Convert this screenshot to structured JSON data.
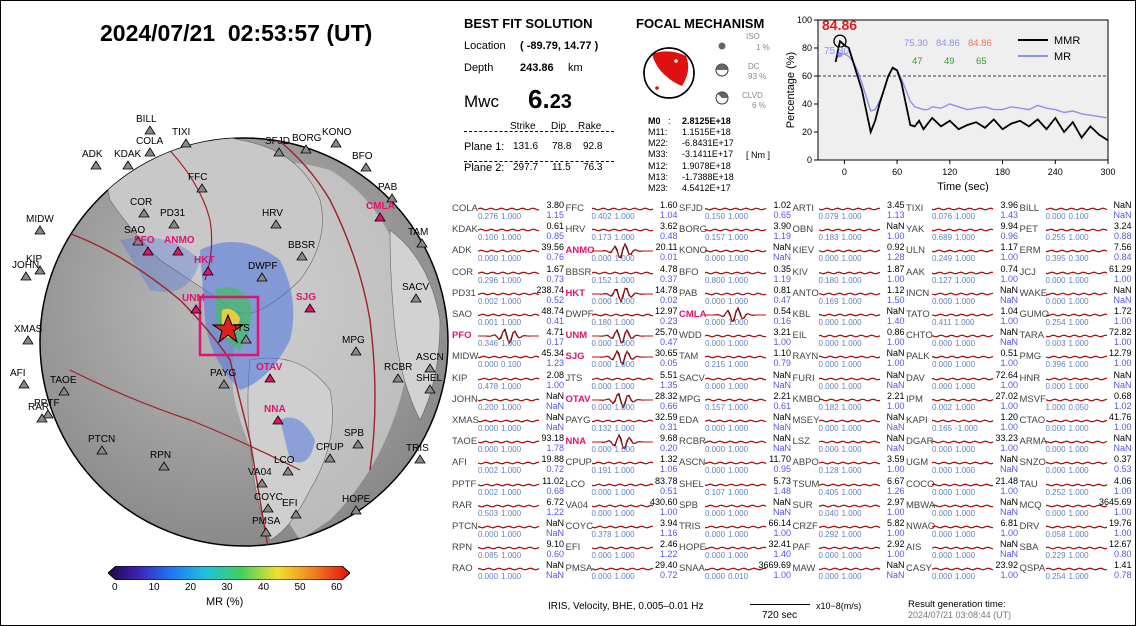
{
  "title": "2024/07/21  02:53:57 (UT)",
  "map": {
    "stations": [
      {
        "n": "TIXI"
      },
      {
        "n": "BILL"
      },
      {
        "n": "COLA"
      },
      {
        "n": "ADK"
      },
      {
        "n": "KDAK"
      },
      {
        "n": "BORG"
      },
      {
        "n": "KONO"
      },
      {
        "n": "SFJD"
      },
      {
        "n": "BFO"
      },
      {
        "n": "FFC"
      },
      {
        "n": "PAB"
      },
      {
        "n": "COR"
      },
      {
        "n": "CMLA",
        "hl": true
      },
      {
        "n": "PD31"
      },
      {
        "n": "HRV"
      },
      {
        "n": "MIDW"
      },
      {
        "n": "SAO"
      },
      {
        "n": "PFO",
        "hl": true
      },
      {
        "n": "ANMO",
        "hl": true
      },
      {
        "n": "BBSR"
      },
      {
        "n": "TAM"
      },
      {
        "n": "KIP"
      },
      {
        "n": "JOHN"
      },
      {
        "n": "HKT",
        "hl": true
      },
      {
        "n": "DWPF"
      },
      {
        "n": "SACV"
      },
      {
        "n": "UNM",
        "hl": true
      },
      {
        "n": "SJG",
        "hl": true
      },
      {
        "n": "XMAS"
      },
      {
        "n": "JTS"
      },
      {
        "n": "MPG"
      },
      {
        "n": "ASCN"
      },
      {
        "n": "AFI"
      },
      {
        "n": "PAYG"
      },
      {
        "n": "OTAV",
        "hl": true
      },
      {
        "n": "RCBR"
      },
      {
        "n": "SHEL"
      },
      {
        "n": "TAOE"
      },
      {
        "n": "PPTF"
      },
      {
        "n": "RAR"
      },
      {
        "n": "NNA",
        "hl": true
      },
      {
        "n": "PTCN"
      },
      {
        "n": "SPB"
      },
      {
        "n": "TRIS"
      },
      {
        "n": "RPN"
      },
      {
        "n": "LCO"
      },
      {
        "n": "CPUP"
      },
      {
        "n": "VA04"
      },
      {
        "n": "COYC"
      },
      {
        "n": "EFI"
      },
      {
        "n": "HOPE"
      },
      {
        "n": "PMSA"
      }
    ],
    "colorbar": {
      "ticks": [
        "0",
        "10",
        "20",
        "30",
        "40",
        "50",
        "60"
      ],
      "label": "MR (%)"
    }
  },
  "solution": {
    "heading": "BEST FIT SOLUTION",
    "location_label": "Location",
    "location_value": "( -89.79, 14.77 )",
    "depth_label": "Depth",
    "depth_value": "243.86",
    "depth_unit": "km",
    "mw_label": "Mwc",
    "mw_int": "6.",
    "mw_dec": "23",
    "col_strike": "Strike",
    "col_dip": "Dip",
    "col_rake": "Rake",
    "planes": [
      {
        "label": "Plane 1:",
        "strike": "131.6",
        "dip": "78.8",
        "rake": "92.8"
      },
      {
        "label": "Plane 2:",
        "strike": "297.7",
        "dip": "11.5",
        "rake": "76.3"
      }
    ]
  },
  "focal": {
    "heading": "FOCAL MECHANISM",
    "iso_label": "ISO",
    "iso_value": "1 %",
    "dc_label": "DC",
    "dc_value": "93 %",
    "clvd_label": "CLVD",
    "clvd_value": "6 %",
    "m0_label": "M0",
    "m0_value": "2.8125E+18",
    "tensor": [
      {
        "k": "M11:",
        "v": "1.1515E+18"
      },
      {
        "k": "M22:",
        "v": "-6.8431E+17"
      },
      {
        "k": "M33:",
        "v": "-3.1411E+17"
      },
      {
        "k": "M12:",
        "v": "1.9078E+18"
      },
      {
        "k": "M13:",
        "v": "-1.7388E+18"
      },
      {
        "k": "M23:",
        "v": "4.5412E+17"
      }
    ],
    "unit": "[ Nm ]"
  },
  "chart_data": {
    "type": "line",
    "xlabel": "Time (sec)",
    "ylabel": "Percentage (%)",
    "xlim": [
      -30,
      300
    ],
    "ylim": [
      0,
      100
    ],
    "xticks": [
      "0",
      "60",
      "120",
      "180",
      "240",
      "300"
    ],
    "yticks": [
      "0",
      "20",
      "40",
      "60",
      "80",
      "100"
    ],
    "threshold": 60,
    "peak_label": "84.86",
    "peak_label2": "75.30",
    "values_top": [
      "75.30",
      "84.86",
      "84.86"
    ],
    "values_bottom": [
      "47",
      "49",
      "65"
    ],
    "series": [
      {
        "name": "MMR",
        "color": "#000000",
        "x": [
          -10,
          -5,
          0,
          5,
          10,
          15,
          20,
          25,
          30,
          35,
          40,
          45,
          50,
          55,
          60,
          65,
          70,
          75,
          80,
          85,
          90,
          95,
          100,
          110,
          120,
          130,
          140,
          150,
          160,
          170,
          180,
          190,
          200,
          210,
          220,
          230,
          240,
          250,
          260,
          270,
          280,
          290,
          300
        ],
        "y": [
          70,
          84.86,
          82,
          80,
          70,
          60,
          50,
          35,
          20,
          28,
          40,
          50,
          60,
          66,
          64,
          55,
          40,
          25,
          24,
          28,
          22,
          26,
          30,
          24,
          28,
          22,
          25,
          27,
          23,
          29,
          22,
          26,
          28,
          24,
          29,
          22,
          30,
          20,
          27,
          16,
          24,
          18,
          14
        ]
      },
      {
        "name": "MR",
        "color": "#8f8fef",
        "x": [
          -10,
          -5,
          0,
          5,
          10,
          15,
          20,
          25,
          30,
          35,
          40,
          45,
          50,
          55,
          60,
          65,
          70,
          75,
          80,
          85,
          90,
          95,
          100,
          110,
          120,
          130,
          140,
          150,
          160,
          170,
          180,
          190,
          200,
          210,
          220,
          230,
          240,
          250,
          260,
          270,
          280,
          290,
          300
        ],
        "y": [
          72,
          75,
          76,
          74,
          70,
          64,
          55,
          45,
          35,
          36,
          42,
          50,
          60,
          65,
          64,
          58,
          50,
          42,
          38,
          37,
          36,
          36,
          38,
          37,
          40,
          38,
          36,
          37,
          38,
          36,
          36,
          38,
          37,
          36,
          39,
          37,
          36,
          34,
          35,
          33,
          32,
          31,
          30
        ]
      }
    ],
    "legend": "top-right"
  },
  "stations_grid": [
    [
      "COLA",
      "3.80",
      "1.15",
      "0.276",
      "1.000",
      false
    ],
    [
      "FFC",
      "1.60",
      "1.04",
      "0.402",
      "1.000",
      false
    ],
    [
      "SFJD",
      "1.02",
      "0.65",
      "0.150",
      "1.000",
      false
    ],
    [
      "ARTI",
      "3.45",
      "1.13",
      "0.079",
      "1.000",
      false
    ],
    [
      "TIXI",
      "3.96",
      "1.43",
      "0.076",
      "1.000",
      false
    ],
    [
      "BILL",
      "NaN",
      "NaN",
      "0.000",
      "0.100",
      false
    ],
    [
      "KDAK",
      "0.61",
      "0.85",
      "0.100",
      "1.000",
      false
    ],
    [
      "HRV",
      "3.62",
      "0.48",
      "0.173",
      "1.000",
      false
    ],
    [
      "BORG",
      "3.90",
      "1.19",
      "0.157",
      "1.000",
      false
    ],
    [
      "OBN",
      "NaN",
      "1.00",
      "0.183",
      "1.000",
      false
    ],
    [
      "YAK",
      "9.94",
      "0.96",
      "0.689",
      "1.000",
      false
    ],
    [
      "PET",
      "3.24",
      "0.88",
      "0.255",
      "1.000",
      false
    ],
    [
      "ADK",
      "39.56",
      "0.76",
      "0.000",
      "1.000",
      false
    ],
    [
      "ANMO",
      "20.11",
      "0.01",
      "0.000",
      "1.000",
      true
    ],
    [
      "KONO",
      "NaN",
      "NaN",
      "0.000",
      "1.000",
      false
    ],
    [
      "KIEV",
      "0.92",
      "1.28",
      "0.000",
      "1.000",
      false
    ],
    [
      "ULN",
      "1.17",
      "1.00",
      "0.249",
      "1.000",
      false
    ],
    [
      "ERM",
      "7.56",
      "0.84",
      "0.395",
      "0.300",
      false
    ],
    [
      "COR",
      "1.67",
      "0.73",
      "0.296",
      "1.000",
      false
    ],
    [
      "BBSR",
      "4.78",
      "0.37",
      "0.152",
      "1.000",
      false
    ],
    [
      "BFO",
      "0.35",
      "1.19",
      "0.800",
      "1.000",
      false
    ],
    [
      "KIV",
      "1.87",
      "1.00",
      "0.180",
      "1.000",
      false
    ],
    [
      "AAK",
      "0.74",
      "1.00",
      "0.127",
      "1.000",
      false
    ],
    [
      "JCJ",
      "61.29",
      "1.00",
      "0.000",
      "1.000",
      false
    ],
    [
      "PD31",
      "238.74",
      "0.52",
      "0.002",
      "1.000",
      false
    ],
    [
      "HKT",
      "14.78",
      "0.02",
      "0.000",
      "1.000",
      true
    ],
    [
      "PAB",
      "0.81",
      "0.47",
      "0.000",
      "1.000",
      false
    ],
    [
      "ANTO",
      "1.12",
      "1.50",
      "0.169",
      "1.000",
      false
    ],
    [
      "INCN",
      "NaN",
      "NaN",
      "0.000",
      "1.000",
      false
    ],
    [
      "WAKE",
      "NaN",
      "NaN",
      "0.000",
      "1.000",
      false
    ],
    [
      "SAO",
      "48.74",
      "0.41",
      "0.001",
      "1.000",
      false
    ],
    [
      "DWPF",
      "12.97",
      "0.23",
      "0.180",
      "1.000",
      false
    ],
    [
      "CMLA",
      "0.54",
      "0.16",
      "0.000",
      "1.000",
      true
    ],
    [
      "KBL",
      "NaN",
      "1.40",
      "0.000",
      "1.000",
      false
    ],
    [
      "TATO",
      "1.04",
      "1.00",
      "0.411",
      "1.000",
      false
    ],
    [
      "GUMO",
      "1.72",
      "1.00",
      "0.254",
      "1.000",
      false
    ],
    [
      "PFO",
      "4.71",
      "0.17",
      "0.346",
      "1.000",
      true
    ],
    [
      "UNM",
      "25.70",
      "0.47",
      "0.000",
      "1.000",
      true
    ],
    [
      "WDD",
      "3.21",
      "1.00",
      "0.000",
      "1.000",
      false
    ],
    [
      "EIL",
      "0.86",
      "1.00",
      "0.000",
      "1.000",
      false
    ],
    [
      "CHTO",
      "NaN",
      "NaN",
      "0.000",
      "1.000",
      false
    ],
    [
      "TARA",
      "72.82",
      "1.00",
      "0.003",
      "1.000",
      false
    ],
    [
      "MIDW",
      "45.34",
      "1.23",
      "0.000",
      "0.100",
      false
    ],
    [
      "SJG",
      "30.65",
      "0.05",
      "0.000",
      "1.000",
      true
    ],
    [
      "TAM",
      "1.10",
      "0.79",
      "0.215",
      "1.000",
      false
    ],
    [
      "RAYN",
      "NaN",
      "1.00",
      "0.000",
      "1.000",
      false
    ],
    [
      "PALK",
      "0.51",
      "1.00",
      "0.000",
      "1.000",
      false
    ],
    [
      "PMG",
      "12.79",
      "1.00",
      "0.396",
      "1.000",
      false
    ],
    [
      "KIP",
      "2.08",
      "1.00",
      "0.478",
      "1.000",
      false
    ],
    [
      "JTS",
      "5.51",
      "1.35",
      "0.000",
      "1.000",
      false
    ],
    [
      "SACV",
      "NaN",
      "NaN",
      "0.000",
      "1.000",
      false
    ],
    [
      "FURI",
      "NaN",
      "NaN",
      "0.000",
      "1.000",
      false
    ],
    [
      "DAV",
      "72.64",
      "1.00",
      "0.000",
      "1.000",
      false
    ],
    [
      "HNR",
      "NaN",
      "NaN",
      "0.000",
      "1.000",
      false
    ],
    [
      "JOHN",
      "NaN",
      "NaN",
      "0.200",
      "1.000",
      false
    ],
    [
      "OTAV",
      "28.32",
      "0.66",
      "0.000",
      "1.000",
      true
    ],
    [
      "MPG",
      "2.21",
      "0.61",
      "0.157",
      "1.000",
      false
    ],
    [
      "KMBO",
      "2.21",
      "1.00",
      "0.182",
      "1.000",
      false
    ],
    [
      "IPM",
      "27.02",
      "1.00",
      "0.002",
      "1.000",
      false
    ],
    [
      "MSVF",
      "0.68",
      "1.02",
      "1.000",
      "0.050",
      false
    ],
    [
      "XMAS",
      "NaN",
      "NaN",
      "0.000",
      "1.000",
      false
    ],
    [
      "PAYG",
      "32.59",
      "0.31",
      "0.132",
      "1.000",
      false
    ],
    [
      "EDA",
      "NaN",
      "NaN",
      "0.000",
      "1.000",
      false
    ],
    [
      "MSEY",
      "NaN",
      "NaN",
      "0.000",
      "1.000",
      false
    ],
    [
      "KAPI",
      "1.20",
      "1.00",
      "0.165",
      "-1.000",
      false
    ],
    [
      "CTAO",
      "41.76",
      "1.00",
      "0.000",
      "1.000",
      false
    ],
    [
      "TAOE",
      "93.18",
      "1.78",
      "0.000",
      "1.000",
      false
    ],
    [
      "NNA",
      "9.68",
      "0.20",
      "0.000",
      "1.000",
      true
    ],
    [
      "RCBR",
      "NaN",
      "NaN",
      "0.000",
      "1.000",
      false
    ],
    [
      "LSZ",
      "NaN",
      "NaN",
      "0.000",
      "1.000",
      false
    ],
    [
      "DGAR",
      "33.23",
      "1.00",
      "0.000",
      "1.000",
      false
    ],
    [
      "ARMA",
      "NaN",
      "NaN",
      "0.000",
      "1.000",
      false
    ],
    [
      "AFI",
      "19.88",
      "0.72",
      "0.002",
      "1.000",
      false
    ],
    [
      "CPUP",
      "1.32",
      "1.06",
      "0.191",
      "1.000",
      false
    ],
    [
      "ASCN",
      "11.70",
      "0.95",
      "0.000",
      "1.000",
      false
    ],
    [
      "ABPO",
      "3.59",
      "1.00",
      "0.128",
      "1.000",
      false
    ],
    [
      "UGM",
      "NaN",
      "NaN",
      "0.000",
      "1.000",
      false
    ],
    [
      "SNZO",
      "0.37",
      "0.53",
      "0.000",
      "1.000",
      false
    ],
    [
      "PPTF",
      "11.02",
      "0.68",
      "0.002",
      "1.000",
      false
    ],
    [
      "LCO",
      "83.78",
      "0.51",
      "0.000",
      "1.000",
      false
    ],
    [
      "SHEL",
      "5.73",
      "1.48",
      "0.107",
      "1.000",
      false
    ],
    [
      "TSUM",
      "6.67",
      "1.26",
      "0.405",
      "1.000",
      false
    ],
    [
      "COCO",
      "21.48",
      "1.00",
      "0.000",
      "1.000",
      false
    ],
    [
      "TAU",
      "4.06",
      "1.00",
      "0.252",
      "1.000",
      false
    ],
    [
      "RAR",
      "6.72",
      "1.22",
      "0.503",
      "1.000",
      false
    ],
    [
      "VA04",
      "430.60",
      "1.00",
      "0.000",
      "1.000",
      false
    ],
    [
      "SPB",
      "NaN",
      "NaN",
      "0.000",
      "1.000",
      false
    ],
    [
      "SUR",
      "2.97",
      "1.00",
      "0.040",
      "1.000",
      false
    ],
    [
      "MBWA",
      "NaN",
      "NaN",
      "0.000",
      "1.000",
      false
    ],
    [
      "MCQ",
      "3645.69",
      "1.00",
      "0.000",
      "1.000",
      false
    ],
    [
      "PTCN",
      "NaN",
      "NaN",
      "0.000",
      "1.000",
      false
    ],
    [
      "COYC",
      "3.94",
      "1.16",
      "0.378",
      "1.000",
      false
    ],
    [
      "TRIS",
      "66.14",
      "1.00",
      "0.000",
      "1.000",
      false
    ],
    [
      "CRZF",
      "5.82",
      "1.00",
      "0.292",
      "1.000",
      false
    ],
    [
      "NWAO",
      "6.81",
      "1.00",
      "0.000",
      "1.000",
      false
    ],
    [
      "DRV",
      "19.76",
      "1.00",
      "0.058",
      "1.000",
      false
    ],
    [
      "RPN",
      "9.10",
      "0.60",
      "0.085",
      "1.000",
      false
    ],
    [
      "EFI",
      "2.46",
      "1.22",
      "0.000",
      "1.000",
      false
    ],
    [
      "HOPE",
      "32.41",
      "1.40",
      "0.000",
      "1.000",
      false
    ],
    [
      "PAF",
      "2.92",
      "1.00",
      "0.000",
      "1.000",
      false
    ],
    [
      "AIS",
      "NaN",
      "NaN",
      "0.000",
      "1.000",
      false
    ],
    [
      "SBA",
      "12.67",
      "0.80",
      "0.229",
      "1.000",
      false
    ],
    [
      "RAO",
      "NaN",
      "NaN",
      "0.000",
      "1.000",
      false
    ],
    [
      "PMSA",
      "29.40",
      "0.72",
      "0.000",
      "1.000",
      false
    ],
    [
      "SNAA",
      "3669.69",
      "1.00",
      "0.000",
      "0.010",
      false
    ],
    [
      "MAW",
      "NaN",
      "NaN",
      "0.000",
      "1.000",
      false
    ],
    [
      "CASY",
      "23.92",
      "1.00",
      "0.000",
      "1.000",
      false
    ],
    [
      "QSPA",
      "1.41",
      "0.78",
      "0.254",
      "1.000",
      false
    ]
  ],
  "footer": {
    "info": "IRIS, Velocity,   BHE,  0.005–0.01 Hz",
    "scale": "720 sec",
    "unit": "x10−8(m/s)",
    "result_label": "Result generation time:",
    "result_time": "2024/07/21 03:08:44 (UT)"
  }
}
